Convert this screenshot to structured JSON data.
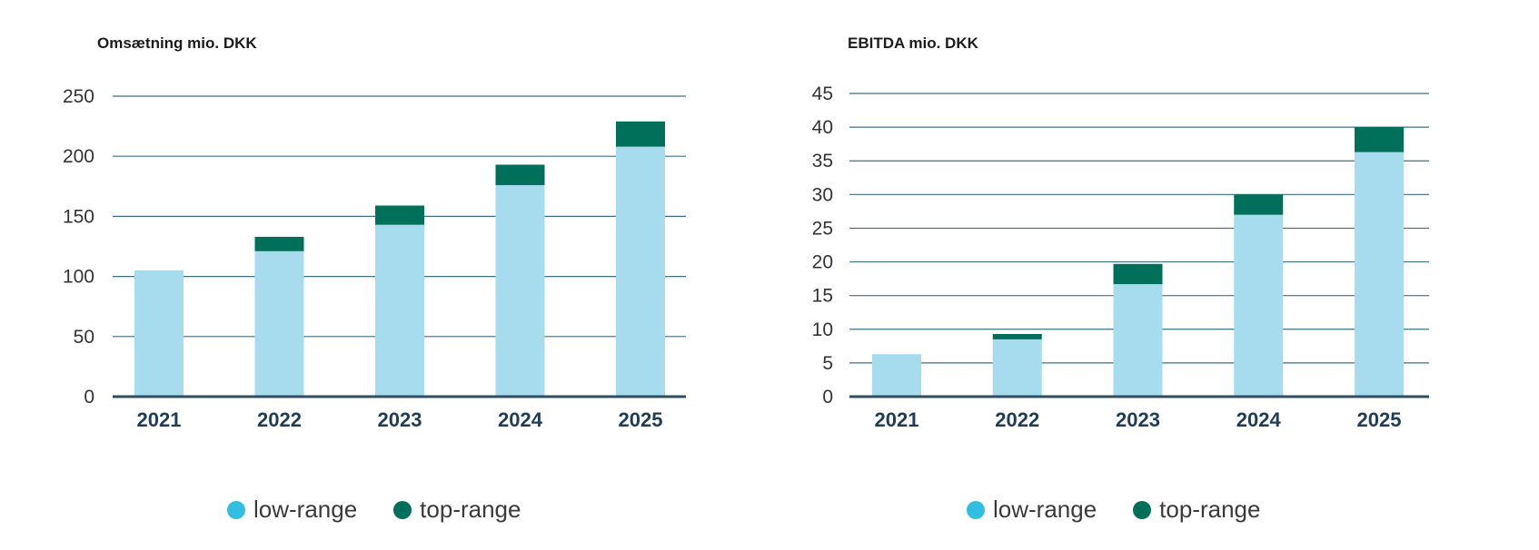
{
  "colors": {
    "low": "#a6dced",
    "top": "#00705a",
    "grid": "#3f6f86",
    "axis": "#2d4f61",
    "tick_text": "#333333",
    "year_text": "#1f3d56",
    "legend_low": "#30bfe0",
    "legend_top": "#00705a"
  },
  "legend": {
    "low_label": "low-range",
    "top_label": "top-range",
    "low_icon": "circle-marker",
    "top_icon": "circle-marker"
  },
  "chart_data": [
    {
      "type": "bar",
      "stacked": true,
      "title": "Omsætning mio. DKK",
      "xlabel": "",
      "ylabel": "",
      "categories": [
        "2021",
        "2022",
        "2023",
        "2024",
        "2025"
      ],
      "series": [
        {
          "name": "low-range",
          "values": [
            105,
            121,
            143,
            176,
            208
          ]
        },
        {
          "name": "top-range",
          "values": [
            0,
            12,
            16,
            17,
            21
          ]
        }
      ],
      "ylim": [
        0,
        250
      ],
      "yticks": [
        0,
        50,
        100,
        150,
        200,
        250
      ],
      "grid": true,
      "legend_position": "bottom"
    },
    {
      "type": "bar",
      "stacked": true,
      "title": "EBITDA mio. DKK",
      "xlabel": "",
      "ylabel": "",
      "categories": [
        "2021",
        "2022",
        "2023",
        "2024",
        "2025"
      ],
      "series": [
        {
          "name": "low-range",
          "values": [
            6.3,
            8.5,
            16.7,
            27,
            36.3
          ]
        },
        {
          "name": "top-range",
          "values": [
            0,
            0.8,
            3,
            3,
            3.7
          ]
        }
      ],
      "ylim": [
        0,
        45
      ],
      "yticks": [
        0,
        5,
        10,
        15,
        20,
        25,
        30,
        35,
        40,
        45
      ],
      "grid": true,
      "legend_position": "bottom"
    }
  ]
}
